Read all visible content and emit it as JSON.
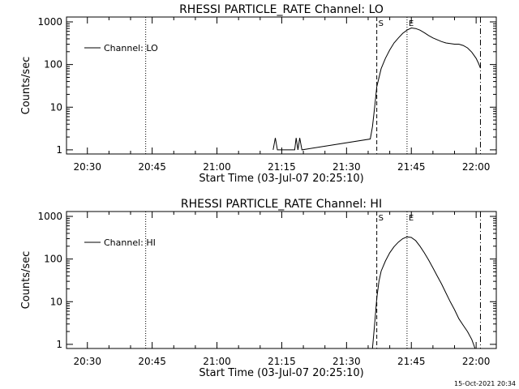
{
  "timestamp": "15-Oct-2021 20:34",
  "chart_data": [
    {
      "type": "line",
      "title": "RHESSI PARTICLE_RATE Channel: LO",
      "xlabel": "Start Time (03-Jul-07 20:25:10)",
      "ylabel": "Counts/sec",
      "y_scale": "log",
      "ylim": [
        0.8,
        1300
      ],
      "x_range": [
        "20:25:10",
        "22:04:40"
      ],
      "x_ticks": [
        "20:30",
        "20:45",
        "21:00",
        "21:15",
        "21:30",
        "21:45",
        "22:00"
      ],
      "y_ticks": [
        "1",
        "10",
        "100",
        "1000"
      ],
      "markers": [
        {
          "time": "20:43:30",
          "style": "dotted",
          "label": ""
        },
        {
          "time": "21:37:00",
          "style": "dashed",
          "label": "S"
        },
        {
          "time": "21:44:00",
          "style": "dotted",
          "label": "E"
        },
        {
          "time": "22:01:00",
          "style": "dashdot",
          "label": ""
        }
      ],
      "series": [
        {
          "name": "Channel: LO",
          "points": [
            [
              "21:13:00",
              1
            ],
            [
              "21:13:30",
              1.9
            ],
            [
              "21:14:00",
              1
            ],
            [
              "21:18:00",
              1
            ],
            [
              "21:18:20",
              1.9
            ],
            [
              "21:18:45",
              1
            ],
            [
              "21:19:10",
              1.9
            ],
            [
              "21:19:40",
              1
            ],
            [
              "21:35:30",
              1.8
            ],
            [
              "21:36:00",
              3.5
            ],
            [
              "21:36:30",
              10
            ],
            [
              "21:37:00",
              30
            ],
            [
              "21:38:00",
              80
            ],
            [
              "21:39:00",
              140
            ],
            [
              "21:40:00",
              220
            ],
            [
              "21:41:00",
              320
            ],
            [
              "21:42:00",
              420
            ],
            [
              "21:43:00",
              540
            ],
            [
              "21:44:00",
              640
            ],
            [
              "21:45:00",
              720
            ],
            [
              "21:46:00",
              700
            ],
            [
              "21:47:00",
              640
            ],
            [
              "21:48:00",
              560
            ],
            [
              "21:49:00",
              480
            ],
            [
              "21:50:00",
              420
            ],
            [
              "21:51:00",
              380
            ],
            [
              "21:52:00",
              345
            ],
            [
              "21:53:00",
              320
            ],
            [
              "21:54:00",
              310
            ],
            [
              "21:55:00",
              300
            ],
            [
              "21:56:00",
              300
            ],
            [
              "21:57:00",
              280
            ],
            [
              "21:58:00",
              245
            ],
            [
              "21:59:00",
              195
            ],
            [
              "22:00:00",
              140
            ],
            [
              "22:00:30",
              110
            ],
            [
              "22:01:00",
              82
            ]
          ]
        }
      ]
    },
    {
      "type": "line",
      "title": "RHESSI PARTICLE_RATE Channel: HI",
      "xlabel": "Start Time (03-Jul-07 20:25:10)",
      "ylabel": "Counts/sec",
      "y_scale": "log",
      "ylim": [
        0.8,
        1300
      ],
      "x_range": [
        "20:25:10",
        "22:04:40"
      ],
      "x_ticks": [
        "20:30",
        "20:45",
        "21:00",
        "21:15",
        "21:30",
        "21:45",
        "22:00"
      ],
      "y_ticks": [
        "1",
        "10",
        "100",
        "1000"
      ],
      "markers": [
        {
          "time": "20:43:30",
          "style": "dotted",
          "label": ""
        },
        {
          "time": "21:37:00",
          "style": "dashed",
          "label": "S"
        },
        {
          "time": "21:44:00",
          "style": "dotted",
          "label": "E"
        },
        {
          "time": "22:01:00",
          "style": "dashdot",
          "label": ""
        }
      ],
      "series": [
        {
          "name": "Channel: HI",
          "points": [
            [
              "21:36:00",
              0.8
            ],
            [
              "21:36:30",
              3
            ],
            [
              "21:37:00",
              12
            ],
            [
              "21:37:30",
              30
            ],
            [
              "21:38:00",
              52
            ],
            [
              "21:39:00",
              90
            ],
            [
              "21:40:00",
              140
            ],
            [
              "21:41:00",
              195
            ],
            [
              "21:42:00",
              250
            ],
            [
              "21:43:00",
              300
            ],
            [
              "21:44:00",
              330
            ],
            [
              "21:45:00",
              320
            ],
            [
              "21:46:00",
              270
            ],
            [
              "21:47:00",
              200
            ],
            [
              "21:48:00",
              140
            ],
            [
              "21:49:00",
              95
            ],
            [
              "21:50:00",
              62
            ],
            [
              "21:51:00",
              40
            ],
            [
              "21:52:00",
              26
            ],
            [
              "21:53:00",
              16
            ],
            [
              "21:54:00",
              10
            ],
            [
              "21:55:00",
              6.5
            ],
            [
              "21:56:00",
              4
            ],
            [
              "21:57:00",
              2.8
            ],
            [
              "21:58:00",
              2
            ],
            [
              "21:59:00",
              1.3
            ],
            [
              "21:59:45",
              0.8
            ]
          ]
        }
      ]
    }
  ]
}
